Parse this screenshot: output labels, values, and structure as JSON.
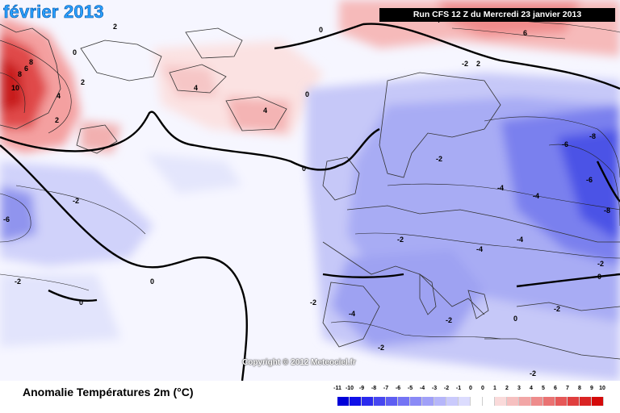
{
  "header": {
    "month_title": "février 2013",
    "run_banner": "Run CFS 12 Z du Mercredi 23 janvier 2013"
  },
  "map": {
    "copyright": "Copyright © 2012 Meteociel.fr",
    "contour_labels": [
      "10",
      "8",
      "6",
      "4",
      "2",
      "0",
      "-2",
      "-4",
      "-6",
      "-8"
    ]
  },
  "footer": {
    "product_title": "Anomalie Températures 2m (°C)"
  },
  "scale": {
    "ticks": [
      "-11",
      "-10",
      "-9",
      "-8",
      "-7",
      "-6",
      "-5",
      "-4",
      "-3",
      "-2",
      "-1",
      "0",
      "0",
      "1",
      "2",
      "3",
      "4",
      "5",
      "6",
      "7",
      "8",
      "9",
      "10"
    ],
    "colors": [
      "#0000d8",
      "#1010e8",
      "#2a2aee",
      "#4646f0",
      "#5e5ef2",
      "#7474f4",
      "#8a8af6",
      "#a0a0f8",
      "#b6b6fa",
      "#cacafc",
      "#dcdcfe",
      "#ffffff",
      "#ffffff",
      "#fadada",
      "#f6c0c0",
      "#f2a6a6",
      "#ee8c8c",
      "#ea7272",
      "#e65858",
      "#e03e3e",
      "#da2424",
      "#d40a0a"
    ]
  }
}
